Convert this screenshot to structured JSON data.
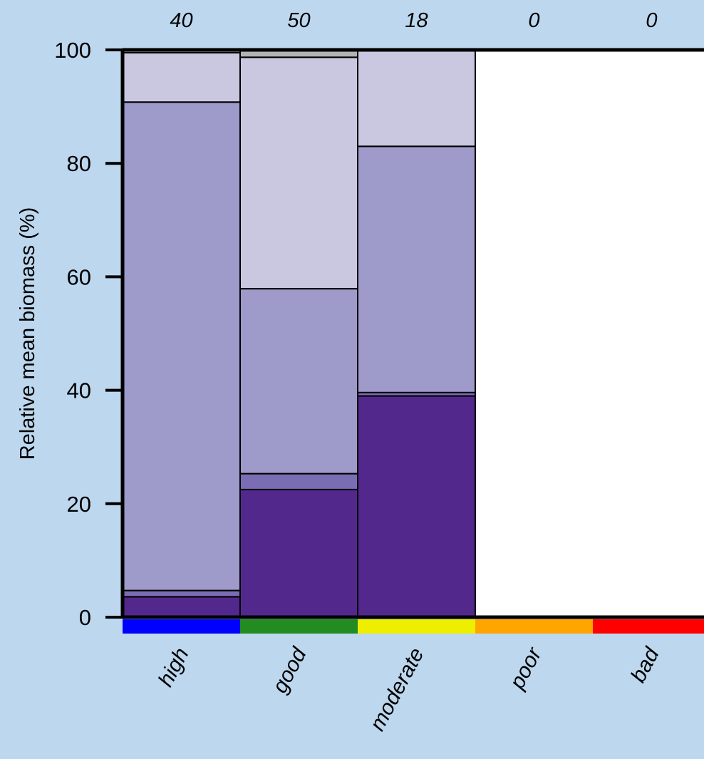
{
  "chart_data": {
    "type": "bar",
    "stacked": true,
    "ylabel": "Relative mean biomass (%)",
    "xlabel": "",
    "ylim": [
      0,
      100
    ],
    "yticks": [
      0,
      20,
      40,
      60,
      80,
      100
    ],
    "categories": [
      "high",
      "good",
      "moderate",
      "poor",
      "bad"
    ],
    "category_colors": [
      "#0000ff",
      "#228b22",
      "#eeee00",
      "#ffa500",
      "#ff0000"
    ],
    "counts": [
      "40",
      "50",
      "18",
      "0",
      "0"
    ],
    "series": [
      {
        "color": "#52288c",
        "values": [
          3.6,
          22.5,
          39.0,
          0,
          0
        ]
      },
      {
        "color": "#7a6db4",
        "values": [
          1.1,
          2.8,
          0.6,
          0,
          0
        ]
      },
      {
        "color": "#9e9aca",
        "values": [
          86.1,
          32.6,
          43.4,
          0,
          0
        ]
      },
      {
        "color": "#cac8e1",
        "values": [
          8.7,
          40.8,
          17.0,
          0,
          0
        ]
      },
      {
        "color": "#b3b3b3",
        "values": [
          0.5,
          1.3,
          0.0,
          0,
          0
        ]
      }
    ],
    "grid": false
  }
}
